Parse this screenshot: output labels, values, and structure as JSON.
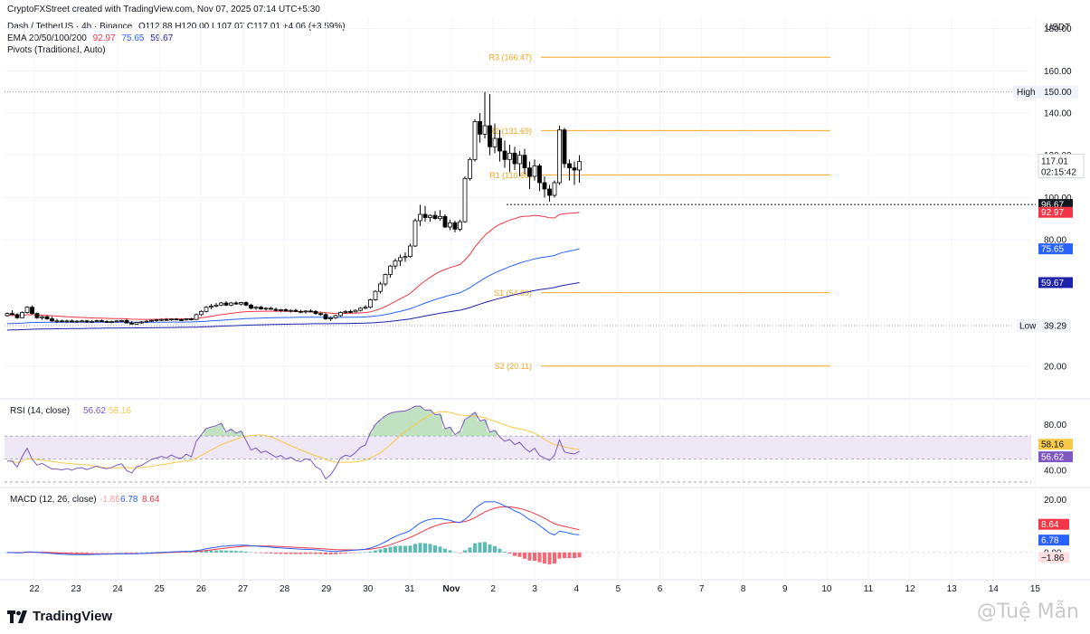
{
  "header": {
    "created_by": "CryptoFXStreet created with TradingView.com, Nov 07, 2025 07:14 UTC+5:30",
    "symbol": "Dash / TetherUS · 4h · Binance",
    "ohlc": "O112.88  H120.00  L107.07  C117.01  +4.06 (+3.59%)",
    "ema_label": "EMA 20/50/100/200",
    "ema_values": [
      "92.97",
      "75.65",
      "59.67"
    ],
    "pivots_label": "Pivots (Traditional, Auto)"
  },
  "colors": {
    "up": "#ffffff",
    "down": "#000000",
    "wick": "#000000",
    "ema20": "#f23645",
    "ema50": "#2962ff",
    "ema100": "#1e22aa",
    "pivot": "#f5a623",
    "rsi": "#7e57c2",
    "rsi_ma": "#f7c948",
    "rsi_band": "#ede7f6",
    "macd": "#2962ff",
    "signal": "#f23645",
    "hist_up": "#26a69a",
    "hist_down": "#f23645"
  },
  "branding": {
    "logo": "TradingView",
    "watermark": "@Tuệ Mẫn"
  },
  "chart_data": [
    {
      "type": "candlestick",
      "title": "Dash / TetherUS · 4h · Binance",
      "currency_label": "USDT",
      "ylim": [
        5,
        185
      ],
      "y_ticks": [
        "20.00",
        "80.00",
        "100.00",
        "120.00",
        "140.00",
        "160.00",
        "180.00"
      ],
      "x_tick_labels": [
        "22",
        "23",
        "24",
        "25",
        "26",
        "27",
        "28",
        "29",
        "30",
        "31",
        "Nov",
        "2",
        "3",
        "4",
        "5",
        "6",
        "7",
        "8",
        "9",
        "10",
        "11",
        "12",
        "13",
        "14",
        "15"
      ],
      "high": {
        "label": "High",
        "value": 150.0,
        "text": "150.00"
      },
      "low": {
        "label": "Low",
        "value": 39.29,
        "text": "39.29"
      },
      "last_price": {
        "value": 117.01,
        "text": "117.01",
        "countdown": "02:15:42"
      },
      "dotted_level": {
        "value": 96.67,
        "text": "96.67"
      },
      "pivots": [
        {
          "label": "R3 (166.47)",
          "value": 166.47
        },
        {
          "label": "R2 (131.69)",
          "value": 131.69
        },
        {
          "label": "R1 (110.68)",
          "value": 110.68
        },
        {
          "label": "S1 (54.89)",
          "value": 54.89
        },
        {
          "label": "S2 (20.11)",
          "value": 20.11
        }
      ],
      "ema_series": [
        {
          "name": "EMA 20",
          "last": 92.97,
          "last_text": "92.97"
        },
        {
          "name": "EMA 50",
          "last": 75.65,
          "last_text": "75.65"
        },
        {
          "name": "EMA 100",
          "last": 59.67,
          "last_text": "59.67"
        }
      ],
      "candles": [
        [
          44.0,
          45.5,
          43.5,
          45.0
        ],
        [
          45.0,
          46.5,
          44.2,
          44.5
        ],
        [
          44.5,
          45.2,
          42.5,
          43.0
        ],
        [
          43.0,
          46.0,
          42.8,
          45.5
        ],
        [
          45.5,
          48.5,
          45.0,
          48.0
        ],
        [
          48.0,
          48.8,
          44.5,
          45.0
        ],
        [
          45.0,
          45.5,
          42.5,
          43.0
        ],
        [
          43.0,
          44.0,
          42.0,
          43.5
        ],
        [
          43.5,
          44.0,
          42.0,
          42.5
        ],
        [
          42.5,
          43.5,
          41.0,
          41.5
        ],
        [
          41.5,
          42.5,
          40.5,
          41.5
        ],
        [
          41.5,
          42.0,
          40.8,
          41.2
        ],
        [
          41.2,
          42.0,
          40.5,
          41.5
        ],
        [
          41.5,
          42.2,
          40.8,
          41.0
        ],
        [
          41.0,
          41.8,
          40.6,
          41.4
        ],
        [
          41.4,
          42.0,
          41.0,
          41.5
        ],
        [
          41.5,
          42.0,
          40.5,
          41.0
        ],
        [
          41.0,
          41.8,
          40.5,
          41.3
        ],
        [
          41.3,
          42.0,
          40.8,
          41.6
        ],
        [
          41.6,
          42.2,
          41.0,
          41.2
        ],
        [
          41.2,
          41.8,
          40.6,
          41.0
        ],
        [
          41.0,
          41.6,
          40.4,
          41.2
        ],
        [
          41.2,
          41.8,
          40.8,
          41.5
        ],
        [
          41.5,
          42.0,
          41.0,
          41.7
        ],
        [
          41.7,
          42.5,
          41.0,
          40.5
        ],
        [
          40.5,
          41.5,
          39.8,
          40.0
        ],
        [
          40.0,
          41.2,
          39.6,
          40.8
        ],
        [
          40.8,
          41.5,
          40.2,
          41.0
        ],
        [
          41.0,
          41.8,
          40.5,
          41.4
        ],
        [
          41.4,
          42.0,
          41.0,
          41.8
        ],
        [
          41.8,
          42.5,
          41.2,
          42.0
        ],
        [
          42.0,
          42.6,
          41.5,
          42.2
        ],
        [
          42.2,
          42.8,
          41.8,
          42.0
        ],
        [
          42.0,
          42.6,
          41.6,
          42.4
        ],
        [
          42.4,
          42.8,
          41.8,
          42.1
        ],
        [
          42.1,
          42.6,
          41.5,
          42.0
        ],
        [
          42.0,
          42.8,
          41.6,
          42.5
        ],
        [
          42.5,
          43.0,
          41.8,
          42.2
        ],
        [
          42.2,
          45.0,
          42.0,
          44.5
        ],
        [
          44.5,
          46.5,
          43.8,
          46.0
        ],
        [
          46.0,
          48.5,
          45.5,
          48.0
        ],
        [
          48.0,
          49.5,
          47.0,
          48.5
        ],
        [
          48.5,
          50.0,
          48.0,
          49.0
        ],
        [
          49.0,
          50.5,
          48.5,
          50.0
        ],
        [
          50.0,
          50.8,
          48.5,
          49.0
        ],
        [
          49.0,
          50.5,
          48.5,
          50.0
        ],
        [
          50.0,
          50.8,
          49.2,
          49.5
        ],
        [
          49.5,
          50.5,
          48.8,
          50.2
        ],
        [
          50.2,
          50.8,
          48.5,
          49.0
        ],
        [
          49.0,
          49.6,
          47.0,
          47.5
        ],
        [
          47.5,
          48.5,
          46.8,
          48.0
        ],
        [
          48.0,
          48.6,
          46.8,
          47.2
        ],
        [
          47.2,
          48.0,
          46.5,
          47.5
        ],
        [
          47.5,
          48.2,
          46.8,
          47.0
        ],
        [
          47.0,
          47.8,
          46.0,
          46.5
        ],
        [
          46.5,
          47.2,
          45.8,
          46.8
        ],
        [
          46.8,
          47.5,
          46.0,
          46.2
        ],
        [
          46.2,
          47.0,
          45.5,
          46.5
        ],
        [
          46.5,
          47.2,
          45.8,
          46.0
        ],
        [
          46.0,
          46.8,
          45.2,
          45.8
        ],
        [
          45.8,
          46.5,
          45.0,
          46.2
        ],
        [
          46.2,
          47.0,
          45.5,
          46.0
        ],
        [
          46.0,
          46.6,
          44.5,
          45.0
        ],
        [
          45.0,
          45.8,
          44.0,
          44.5
        ],
        [
          44.5,
          45.2,
          42.0,
          42.5
        ],
        [
          42.5,
          43.5,
          41.5,
          43.0
        ],
        [
          43.0,
          44.5,
          42.5,
          44.0
        ],
        [
          44.0,
          46.0,
          43.5,
          45.5
        ],
        [
          45.5,
          46.5,
          45.0,
          46.0
        ],
        [
          46.0,
          46.8,
          45.2,
          45.8
        ],
        [
          45.8,
          47.0,
          45.5,
          46.5
        ],
        [
          46.5,
          48.0,
          46.0,
          47.5
        ],
        [
          47.5,
          49.0,
          47.0,
          48.0
        ],
        [
          48.0,
          52.0,
          47.5,
          51.5
        ],
        [
          51.5,
          56.0,
          51.0,
          55.5
        ],
        [
          55.5,
          60.0,
          54.5,
          59.0
        ],
        [
          59.0,
          64.0,
          58.0,
          63.5
        ],
        [
          63.5,
          68.0,
          62.0,
          67.5
        ],
        [
          67.5,
          71.0,
          66.0,
          70.0
        ],
        [
          70.0,
          73.0,
          67.5,
          71.5
        ],
        [
          71.5,
          74.0,
          69.5,
          72.0
        ],
        [
          72.0,
          78.0,
          71.5,
          77.0
        ],
        [
          77.0,
          90.0,
          76.5,
          89.0
        ],
        [
          89.0,
          96.5,
          86.5,
          92.0
        ],
        [
          92.0,
          96.0,
          88.5,
          90.5
        ],
        [
          90.5,
          92.0,
          88.5,
          91.5
        ],
        [
          91.5,
          93.5,
          89.5,
          90.0
        ],
        [
          90.0,
          94.0,
          89.0,
          91.0
        ],
        [
          91.0,
          92.0,
          85.5,
          86.0
        ],
        [
          86.0,
          89.5,
          84.5,
          88.0
        ],
        [
          88.0,
          89.0,
          83.5,
          85.0
        ],
        [
          85.0,
          89.5,
          84.0,
          88.5
        ],
        [
          88.5,
          110.0,
          88.0,
          109.0
        ],
        [
          109.0,
          119.0,
          108.0,
          118.0
        ],
        [
          118.0,
          137.0,
          117.0,
          136.0
        ],
        [
          136.0,
          140.0,
          126.0,
          130.0
        ],
        [
          130.0,
          150.0,
          128.0,
          134.0
        ],
        [
          134.0,
          149.0,
          120.0,
          124.0
        ],
        [
          124.0,
          135.0,
          121.0,
          128.0
        ],
        [
          128.0,
          132.0,
          117.0,
          122.0
        ],
        [
          122.0,
          127.0,
          114.0,
          118.0
        ],
        [
          118.0,
          125.0,
          112.0,
          121.0
        ],
        [
          121.0,
          124.0,
          113.0,
          116.0
        ],
        [
          116.0,
          122.0,
          110.0,
          120.0
        ],
        [
          120.0,
          123.0,
          111.0,
          114.0
        ],
        [
          114.0,
          117.0,
          104.0,
          110.0
        ],
        [
          110.0,
          118.0,
          108.0,
          115.0
        ],
        [
          115.0,
          116.0,
          103.0,
          107.0
        ],
        [
          107.0,
          110.0,
          100.0,
          104.0
        ],
        [
          104.0,
          106.0,
          98.0,
          101.0
        ],
        [
          101.0,
          108.0,
          100.0,
          107.0
        ],
        [
          107.0,
          134.0,
          106.0,
          132.0
        ],
        [
          132.0,
          133.0,
          114.0,
          116.0
        ],
        [
          116.0,
          118.0,
          108.0,
          114.0
        ],
        [
          114.0,
          117.0,
          106.0,
          113.0
        ],
        [
          113.0,
          120.0,
          107.0,
          117.0
        ]
      ]
    },
    {
      "type": "line",
      "title": "RSI (14, close)",
      "legend_values": [
        "56.62",
        "58.16"
      ],
      "ylim": [
        26,
        100
      ],
      "y_ticks": [
        "40.00",
        "80.00"
      ],
      "band": [
        50,
        70
      ],
      "series": [
        {
          "name": "RSI",
          "last": 56.62,
          "last_text": "56.62"
        },
        {
          "name": "RSI-based MA",
          "last": 58.16,
          "last_text": "58.16"
        }
      ]
    },
    {
      "type": "bar",
      "title": "MACD (12, 26, close)",
      "legend_values": [
        "-1.86",
        "6.78",
        "8.64"
      ],
      "ylim": [
        -10,
        24
      ],
      "y_ticks": [
        "0.00",
        "20.00"
      ],
      "series": [
        {
          "name": "MACD",
          "last": 6.78,
          "last_text": "6.78"
        },
        {
          "name": "Signal",
          "last": 8.64,
          "last_text": "8.64"
        },
        {
          "name": "Histogram",
          "last": -1.86,
          "last_text": "−1.86"
        }
      ]
    }
  ]
}
